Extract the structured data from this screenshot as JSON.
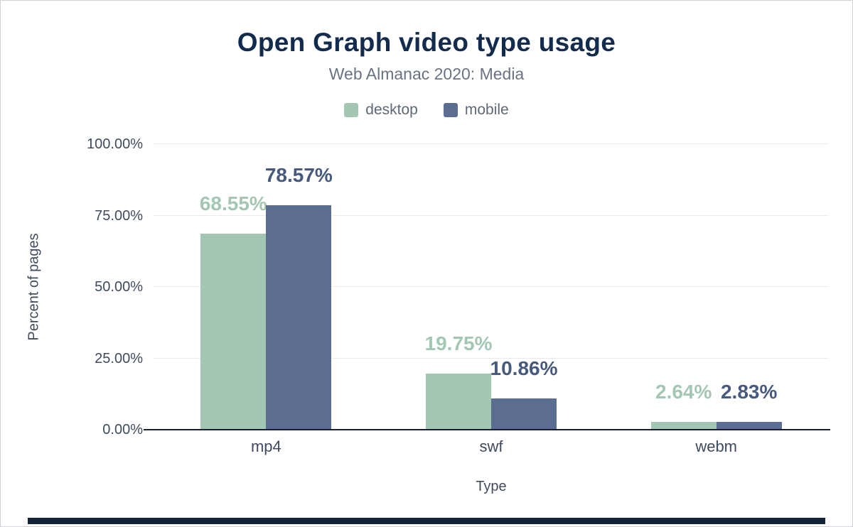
{
  "chart_data": {
    "type": "bar",
    "title": "Open Graph video type usage",
    "subtitle": "Web Almanac 2020: Media",
    "categories": [
      "mp4",
      "swf",
      "webm"
    ],
    "series": [
      {
        "name": "desktop",
        "values": [
          68.55,
          19.75,
          2.64
        ],
        "labels": [
          "68.55%",
          "19.75%",
          "2.64%"
        ],
        "color": "#a3c7b3",
        "label_color": "#a3c7b3"
      },
      {
        "name": "mobile",
        "values": [
          78.57,
          10.86,
          2.83
        ],
        "labels": [
          "78.57%",
          "10.86%",
          "2.83%"
        ],
        "color": "#5b6d90",
        "label_color": "#47597c"
      }
    ],
    "xlabel": "Type",
    "ylabel": "Percent of pages",
    "ylim": [
      0,
      100
    ],
    "yticks": [
      {
        "value": 0,
        "label": "0.00%"
      },
      {
        "value": 25,
        "label": "25.00%"
      },
      {
        "value": 50,
        "label": "50.00%"
      },
      {
        "value": 75,
        "label": "75.00%"
      },
      {
        "value": 100,
        "label": "100.00%"
      }
    ],
    "grid": "horizontal-major",
    "legend_position": "top"
  },
  "colors": {
    "background": "#ffffff",
    "title": "#132b4d",
    "subtitle": "#6a7383",
    "legend_text": "#5e6877",
    "axis_text": "#3f4b5e",
    "gridline": "#e8eaed",
    "axis_line": "#16202e",
    "footer_bar": "#142338"
  }
}
